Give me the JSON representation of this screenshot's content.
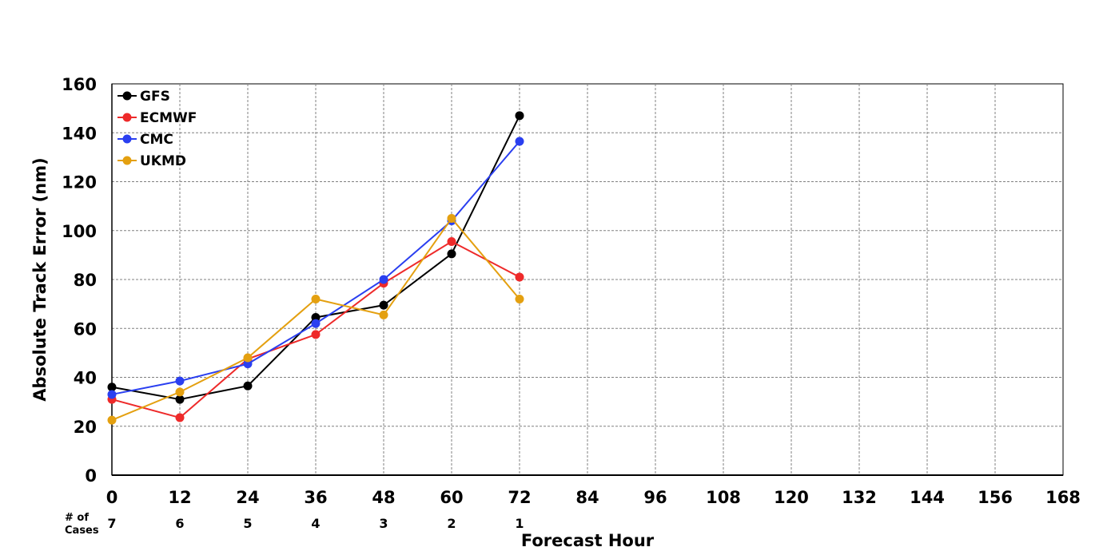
{
  "chart_data": {
    "type": "line",
    "title": "",
    "xlabel": "Forecast Hour",
    "ylabel": "Absolute Track Error (nm)",
    "xlim": [
      0,
      168
    ],
    "ylim": [
      0,
      160
    ],
    "x_ticks": [
      0,
      12,
      24,
      36,
      48,
      60,
      72,
      84,
      96,
      108,
      120,
      132,
      144,
      156,
      168
    ],
    "y_ticks": [
      0,
      20,
      40,
      60,
      80,
      100,
      120,
      140,
      160
    ],
    "grid": true,
    "legend_position": "top-left",
    "x": [
      0,
      12,
      24,
      36,
      48,
      60,
      72
    ],
    "series": [
      {
        "name": "GFS",
        "color": "#000000",
        "values": [
          36,
          31,
          36.5,
          64.5,
          69.5,
          90.5,
          147
        ]
      },
      {
        "name": "ECMWF",
        "color": "#ee2a2a",
        "values": [
          31,
          23.5,
          47.5,
          57.5,
          78.5,
          95.5,
          81
        ]
      },
      {
        "name": "CMC",
        "color": "#2a3ff0",
        "values": [
          33,
          38.5,
          45.5,
          62,
          80,
          104,
          136.5
        ]
      },
      {
        "name": "UKMD",
        "color": "#e4a010",
        "values": [
          22.5,
          34,
          48,
          72,
          65.5,
          105,
          72
        ]
      }
    ],
    "cases": {
      "label_line1": "# of",
      "label_line2": "Cases",
      "values": [
        7,
        6,
        5,
        4,
        3,
        2,
        1
      ]
    }
  }
}
